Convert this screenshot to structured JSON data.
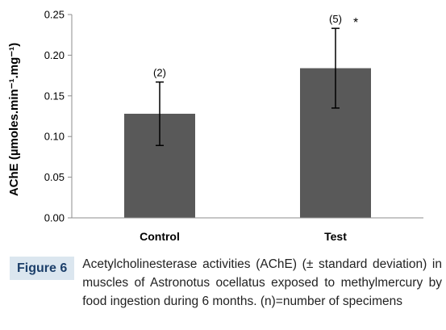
{
  "chart_data": {
    "type": "bar",
    "categories": [
      "Control",
      "Test"
    ],
    "values": [
      0.128,
      0.184
    ],
    "error": [
      0.039,
      0.049
    ],
    "annotations": [
      "(2)",
      "(5)"
    ],
    "significance": [
      "",
      "*"
    ],
    "ylabel": "AChE (µmoles.min⁻¹.mg⁻¹)",
    "ylim": [
      0,
      0.25
    ],
    "yticks": [
      "0.00",
      "0.05",
      "0.10",
      "0.15",
      "0.20",
      "0.25"
    ],
    "grid": false,
    "bar_color": "#595959"
  },
  "caption": {
    "label": "Figure 6",
    "text": "Acetylcholinesterase activities (AChE) (± standard deviation) in muscles of Astronotus ocellatus exposed to methylmercury by food ingestion during 6 months. (n)=number of specimens"
  }
}
